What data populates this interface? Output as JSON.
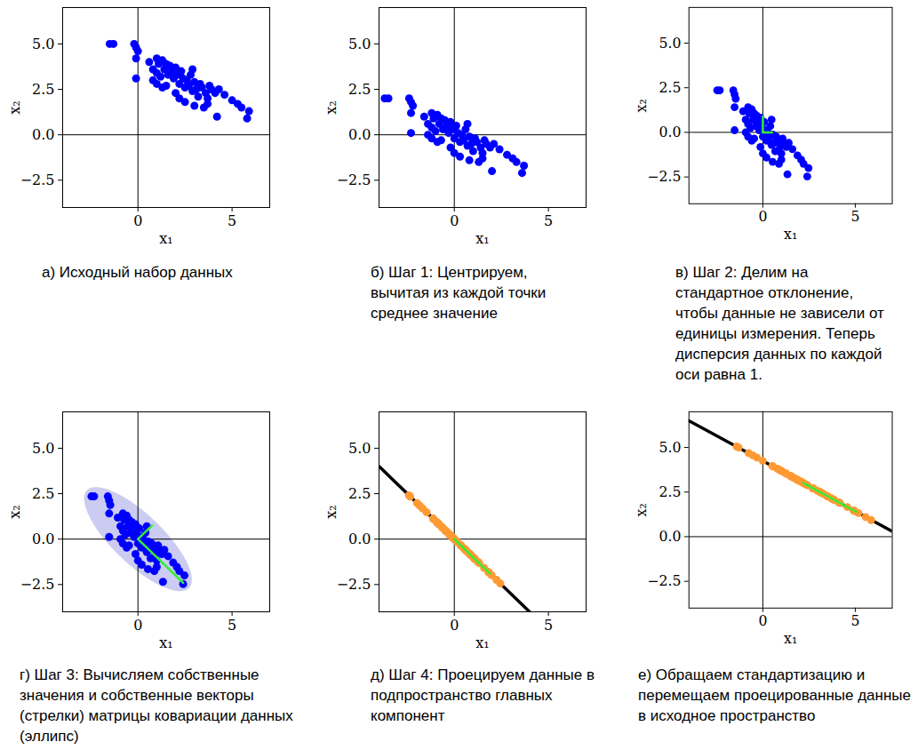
{
  "chart_data": [
    {
      "type": "scatter",
      "title": "а) Исходный набор данных",
      "x_label": "x₁",
      "y_label": "x₂",
      "xlim": [
        -4,
        7
      ],
      "ylim": [
        -4,
        7
      ],
      "xticks": [
        0,
        5
      ],
      "yticks": [
        {
          "value": -2.5,
          "label": "−2.5"
        },
        {
          "value": 0,
          "label": "0.0"
        },
        {
          "value": 2.5,
          "label": "2.5"
        },
        {
          "value": 5,
          "label": "5.0"
        }
      ],
      "series": [
        {
          "type": "scatter",
          "marker": "circle",
          "color": "#0000ff",
          "x": [
            -1.5,
            -1.3,
            -0.2,
            -0.1,
            0.0,
            -0.1,
            -0.1,
            0.6,
            0.8,
            1.0,
            1.1,
            1.3,
            1.0,
            1.2,
            1.4,
            1.5,
            1.6,
            1.7,
            1.8,
            1.9,
            2.0,
            2.1,
            2.2,
            2.3,
            2.4,
            2.5,
            2.6,
            2.7,
            2.8,
            2.9,
            3.0,
            3.1,
            3.2,
            3.3,
            3.4,
            3.6,
            3.7,
            3.8,
            3.9,
            4.1,
            4.2,
            4.3,
            4.6,
            5.0,
            5.3,
            5.5,
            5.8,
            5.9,
            1.0,
            1.5,
            2.0,
            2.5,
            3.0,
            3.5,
            0.8,
            2.9,
            1.3,
            2.2,
            3.7
          ],
          "y": [
            5.0,
            5.0,
            5.0,
            4.8,
            4.6,
            4.2,
            3.1,
            4.0,
            3.6,
            4.2,
            3.9,
            4.1,
            3.4,
            3.2,
            3.6,
            3.9,
            3.3,
            3.8,
            3.5,
            3.1,
            3.7,
            3.3,
            2.8,
            3.5,
            3.1,
            2.6,
            3.0,
            2.7,
            3.3,
            2.4,
            2.9,
            2.5,
            2.1,
            2.8,
            2.6,
            2.3,
            2.0,
            2.7,
            2.5,
            2.3,
            1.0,
            2.5,
            2.2,
            1.9,
            1.7,
            1.5,
            0.9,
            1.3,
            2.8,
            2.7,
            2.3,
            1.8,
            1.6,
            1.5,
            3.0,
            3.6,
            2.6,
            2.0,
            1.7
          ]
        }
      ]
    },
    {
      "type": "scatter",
      "title": "б) Шаг 1: Центрируем, вычитая из каждой точки среднее значение",
      "x_label": "x₁",
      "y_label": "x₂",
      "xlim": [
        -4,
        7
      ],
      "ylim": [
        -4,
        7
      ],
      "xticks": [
        0,
        5
      ],
      "yticks": [
        {
          "value": -2.5,
          "label": "−2.5"
        },
        {
          "value": 0,
          "label": "0.0"
        },
        {
          "value": 2.5,
          "label": "2.5"
        },
        {
          "value": 5,
          "label": "5.0"
        }
      ],
      "series": [
        {
          "type": "scatter",
          "marker": "circle",
          "color": "#0000ff",
          "x": [
            -3.7,
            -3.5,
            -2.4,
            -2.3,
            -2.2,
            -2.3,
            -2.3,
            -1.6,
            -1.4,
            -1.2,
            -1.1,
            -0.9,
            -1.2,
            -1.0,
            -0.8,
            -0.7,
            -0.6,
            -0.5,
            -0.4,
            -0.3,
            -0.2,
            -0.1,
            0.0,
            0.1,
            0.2,
            0.3,
            0.4,
            0.5,
            0.6,
            0.7,
            0.8,
            0.9,
            1.0,
            1.1,
            1.2,
            1.4,
            1.5,
            1.6,
            1.7,
            1.9,
            2.0,
            2.1,
            2.4,
            2.8,
            3.1,
            3.3,
            3.6,
            3.7,
            -1.2,
            -0.7,
            -0.2,
            0.3,
            0.8,
            1.3,
            -1.4,
            0.7,
            -0.9,
            0.0,
            1.5
          ],
          "y": [
            2.0,
            2.0,
            2.0,
            1.8,
            1.6,
            1.2,
            0.1,
            1.0,
            0.6,
            1.2,
            0.9,
            1.1,
            0.4,
            0.2,
            0.6,
            0.9,
            0.3,
            0.8,
            0.5,
            0.1,
            0.7,
            0.3,
            -0.2,
            0.5,
            0.1,
            -0.4,
            0.0,
            -0.3,
            0.3,
            -0.6,
            -0.1,
            -0.5,
            -0.9,
            -0.2,
            -0.4,
            -0.7,
            -1.0,
            -0.3,
            -0.5,
            -0.7,
            -2.0,
            -0.5,
            -0.8,
            -1.1,
            -1.3,
            -1.5,
            -2.1,
            -1.7,
            -0.2,
            -0.3,
            -0.7,
            -1.2,
            -1.4,
            -1.5,
            0.0,
            0.6,
            -0.4,
            -1.0,
            -1.3
          ]
        }
      ]
    },
    {
      "type": "scatter",
      "title": "в) Шаг 2: Делим на стандартное отклонение, чтобы данные не зависели от единицы измерения. Теперь дисперсия данных по каждой оси равна 1.",
      "x_label": "x₁",
      "y_label": "x₂",
      "xlim": [
        -4,
        7
      ],
      "ylim": [
        -4,
        7
      ],
      "xticks": [
        0,
        5
      ],
      "yticks": [
        {
          "value": -2.5,
          "label": "−2.5"
        },
        {
          "value": 0,
          "label": "0.0"
        },
        {
          "value": 2.5,
          "label": "2.5"
        },
        {
          "value": 5,
          "label": "5.0"
        }
      ],
      "series": [
        {
          "type": "scatter",
          "marker": "circle",
          "color": "#0000ff",
          "x": [
            -2.47,
            -2.33,
            -1.6,
            -1.53,
            -1.47,
            -1.53,
            -1.53,
            -1.07,
            -0.93,
            -0.8,
            -0.73,
            -0.6,
            -0.8,
            -0.67,
            -0.53,
            -0.47,
            -0.4,
            -0.33,
            -0.27,
            -0.2,
            -0.13,
            -0.07,
            0.0,
            0.07,
            0.13,
            0.2,
            0.27,
            0.33,
            0.4,
            0.47,
            0.53,
            0.6,
            0.67,
            0.73,
            0.8,
            0.93,
            1.0,
            1.07,
            1.13,
            1.27,
            1.33,
            1.4,
            1.6,
            1.87,
            2.07,
            2.2,
            2.4,
            2.47,
            -0.8,
            -0.47,
            -0.13,
            0.2,
            0.53,
            0.87,
            -0.93,
            0.47,
            -0.6,
            0.0,
            1.0
          ],
          "y": [
            2.35,
            2.35,
            2.35,
            2.12,
            1.88,
            1.41,
            0.12,
            1.18,
            0.71,
            1.41,
            1.06,
            1.29,
            0.47,
            0.24,
            0.71,
            1.06,
            0.35,
            0.94,
            0.59,
            0.12,
            0.82,
            0.35,
            -0.24,
            0.59,
            0.12,
            -0.47,
            0.0,
            -0.35,
            0.35,
            -0.71,
            -0.12,
            -0.59,
            -1.06,
            -0.24,
            -0.47,
            -0.82,
            -1.18,
            -0.35,
            -0.59,
            -0.82,
            -2.35,
            -0.59,
            -0.94,
            -1.29,
            -1.53,
            -1.76,
            -2.47,
            -2.0,
            -0.24,
            -0.35,
            -0.82,
            -1.41,
            -1.65,
            -1.76,
            0.0,
            0.71,
            -0.47,
            -1.18,
            -1.53
          ]
        },
        {
          "type": "vector",
          "color": "#33ee33",
          "x": [
            0,
            0
          ],
          "y": [
            0,
            0.9
          ]
        },
        {
          "type": "vector",
          "color": "#33ee33",
          "x": [
            0,
            0.5
          ],
          "y": [
            0,
            0
          ]
        }
      ]
    },
    {
      "type": "scatter",
      "title": "г) Шаг 3: Вычисляем собственные значения и собственные векторы (стрелки) матрицы ковариации данных (эллипс)",
      "x_label": "x₁",
      "y_label": "x₂",
      "xlim": [
        -4,
        7
      ],
      "ylim": [
        -4,
        7
      ],
      "xticks": [
        0,
        5
      ],
      "yticks": [
        {
          "value": -2.5,
          "label": "−2.5"
        },
        {
          "value": 0,
          "label": "0.0"
        },
        {
          "value": 2.5,
          "label": "2.5"
        },
        {
          "value": 5,
          "label": "5.0"
        }
      ],
      "series": [
        {
          "type": "ellipse",
          "color": "#ccccf2",
          "center": [
            0,
            0
          ],
          "axes": [
            [
              2.7,
              -2.7
            ],
            [
              0.95,
              0.95
            ]
          ]
        },
        {
          "type": "scatter",
          "marker": "circle",
          "color": "#0000ff",
          "x": [
            -2.47,
            -2.33,
            -1.6,
            -1.53,
            -1.47,
            -1.53,
            -1.53,
            -1.07,
            -0.93,
            -0.8,
            -0.73,
            -0.6,
            -0.8,
            -0.67,
            -0.53,
            -0.47,
            -0.4,
            -0.33,
            -0.27,
            -0.2,
            -0.13,
            -0.07,
            0.0,
            0.07,
            0.13,
            0.2,
            0.27,
            0.33,
            0.4,
            0.47,
            0.53,
            0.6,
            0.67,
            0.73,
            0.8,
            0.93,
            1.0,
            1.07,
            1.13,
            1.27,
            1.33,
            1.4,
            1.6,
            1.87,
            2.07,
            2.2,
            2.4,
            2.47,
            -0.8,
            -0.47,
            -0.13,
            0.2,
            0.53,
            0.87,
            -0.93,
            0.47,
            -0.6,
            0.0,
            1.0
          ],
          "y": [
            2.35,
            2.35,
            2.35,
            2.12,
            1.88,
            1.41,
            0.12,
            1.18,
            0.71,
            1.41,
            1.06,
            1.29,
            0.47,
            0.24,
            0.71,
            1.06,
            0.35,
            0.94,
            0.59,
            0.12,
            0.82,
            0.35,
            -0.24,
            0.59,
            0.12,
            -0.47,
            0.0,
            -0.35,
            0.35,
            -0.71,
            -0.12,
            -0.59,
            -1.06,
            -0.24,
            -0.47,
            -0.82,
            -1.18,
            -0.35,
            -0.59,
            -0.82,
            -2.35,
            -0.59,
            -0.94,
            -1.29,
            -1.53,
            -1.76,
            -2.47,
            -2.0,
            -0.24,
            -0.35,
            -0.82,
            -1.41,
            -1.65,
            -1.76,
            0.0,
            0.71,
            -0.47,
            -1.18,
            -1.53
          ]
        },
        {
          "type": "vector",
          "color": "#33ee33",
          "x": [
            0,
            2.4
          ],
          "y": [
            0,
            -2.4
          ]
        },
        {
          "type": "vector",
          "color": "#33ee33",
          "x": [
            0,
            0.75
          ],
          "y": [
            0,
            0.75
          ]
        }
      ]
    },
    {
      "type": "scatter",
      "title": "д) Шаг 4: Проецируем данные в подпространство главных компонент",
      "x_label": "x₁",
      "y_label": "x₂",
      "xlim": [
        -4,
        7
      ],
      "ylim": [
        -4,
        7
      ],
      "xticks": [
        0,
        5
      ],
      "yticks": [
        {
          "value": -2.5,
          "label": "−2.5"
        },
        {
          "value": 0,
          "label": "0.0"
        },
        {
          "value": 2.5,
          "label": "2.5"
        },
        {
          "value": 5,
          "label": "5.0"
        }
      ],
      "series": [
        {
          "type": "line",
          "color": "#000000",
          "x": [
            -4,
            4
          ],
          "y": [
            4,
            -4
          ]
        },
        {
          "type": "scatter",
          "marker": "circle",
          "color": "#ff9933",
          "x": [
            -2.41,
            -2.34,
            -1.98,
            -1.83,
            -1.68,
            -1.47,
            -0.83,
            -1.13,
            -0.82,
            -1.11,
            -0.9,
            -0.95,
            -0.64,
            -0.46,
            -0.62,
            -0.77,
            -0.38,
            -0.64,
            -0.43,
            -0.16,
            -0.48,
            -0.21,
            0.12,
            -0.26,
            0.01,
            0.34,
            0.14,
            0.34,
            0.03,
            0.59,
            0.33,
            0.6,
            0.87,
            0.49,
            0.64,
            0.88,
            1.09,
            0.71,
            0.86,
            1.05,
            1.84,
            1.0,
            1.27,
            1.58,
            1.8,
            1.98,
            2.44,
            2.24,
            -0.28,
            -0.06,
            0.35,
            0.81,
            1.09,
            1.32,
            -0.47,
            -0.12,
            -0.07,
            0.59,
            1.27
          ],
          "y": [
            2.41,
            2.34,
            1.98,
            1.83,
            1.68,
            1.47,
            0.83,
            1.13,
            0.82,
            1.11,
            0.9,
            0.95,
            0.64,
            0.46,
            0.62,
            0.77,
            0.38,
            0.64,
            0.43,
            0.16,
            0.48,
            0.21,
            -0.12,
            0.26,
            -0.01,
            -0.34,
            -0.14,
            -0.34,
            -0.03,
            -0.59,
            -0.33,
            -0.6,
            -0.87,
            -0.49,
            -0.64,
            -0.88,
            -1.09,
            -0.71,
            -0.86,
            -1.05,
            -1.84,
            -1.0,
            -1.27,
            -1.58,
            -1.8,
            -1.98,
            -2.44,
            -2.24,
            0.28,
            0.06,
            -0.35,
            -0.81,
            -1.09,
            -1.32,
            0.47,
            0.12,
            0.07,
            -0.59,
            -1.27
          ]
        },
        {
          "type": "vector",
          "color": "#33ee33",
          "x": [
            0,
            1.9
          ],
          "y": [
            0,
            -1.9
          ]
        }
      ]
    },
    {
      "type": "scatter",
      "title": "е) Обращаем стандартизацию и перемещаем проецированные данные в исходное пространство",
      "x_label": "x₁",
      "y_label": "x₂",
      "xlim": [
        -4,
        7
      ],
      "ylim": [
        -4,
        7
      ],
      "xticks": [
        0,
        5
      ],
      "yticks": [
        {
          "value": -2.5,
          "label": "−2.5"
        },
        {
          "value": 0,
          "label": "0.0"
        },
        {
          "value": 2.5,
          "label": "2.5"
        },
        {
          "value": 5,
          "label": "5.0"
        }
      ],
      "series": [
        {
          "type": "line",
          "color": "#000000",
          "x": [
            -4,
            7
          ],
          "y": [
            6.5,
            0.3
          ]
        },
        {
          "type": "scatter",
          "marker": "circle",
          "color": "#ff9933",
          "x": [
            -1.42,
            -1.31,
            -0.77,
            -0.55,
            -0.32,
            -0.01,
            0.96,
            0.51,
            0.97,
            0.54,
            0.85,
            0.78,
            1.24,
            1.51,
            1.27,
            1.05,
            1.63,
            1.24,
            1.56,
            1.96,
            1.48,
            1.89,
            2.38,
            1.81,
            2.22,
            2.71,
            2.41,
            2.71,
            2.25,
            3.09,
            2.7,
            3.1,
            3.51,
            2.94,
            3.16,
            3.52,
            3.84,
            3.27,
            3.49,
            3.78,
            4.96,
            3.7,
            4.11,
            4.57,
            4.9,
            5.17,
            5.86,
            5.56,
            1.78,
            2.11,
            2.73,
            3.42,
            3.84,
            4.18,
            1.5,
            2.02,
            2.1,
            3.09,
            4.11
          ],
          "y": [
            5.05,
            4.99,
            4.68,
            4.56,
            4.43,
            4.25,
            3.71,
            3.96,
            3.7,
            3.94,
            3.77,
            3.81,
            3.54,
            3.39,
            3.53,
            3.65,
            3.32,
            3.54,
            3.37,
            3.14,
            3.41,
            3.18,
            2.9,
            3.22,
            2.99,
            2.71,
            2.88,
            2.71,
            2.97,
            2.5,
            2.72,
            2.49,
            2.26,
            2.58,
            2.46,
            2.25,
            2.07,
            2.4,
            2.27,
            2.11,
            1.44,
            2.15,
            1.92,
            1.66,
            1.47,
            1.32,
            0.93,
            1.1,
            3.24,
            3.05,
            2.7,
            2.31,
            2.07,
            1.88,
            3.4,
            3.1,
            3.06,
            2.5,
            1.92
          ]
        },
        {
          "type": "vector",
          "color": "#33ee33",
          "x": [
            2.2,
            5.05
          ],
          "y": [
            3.0,
            1.39
          ]
        }
      ]
    }
  ]
}
